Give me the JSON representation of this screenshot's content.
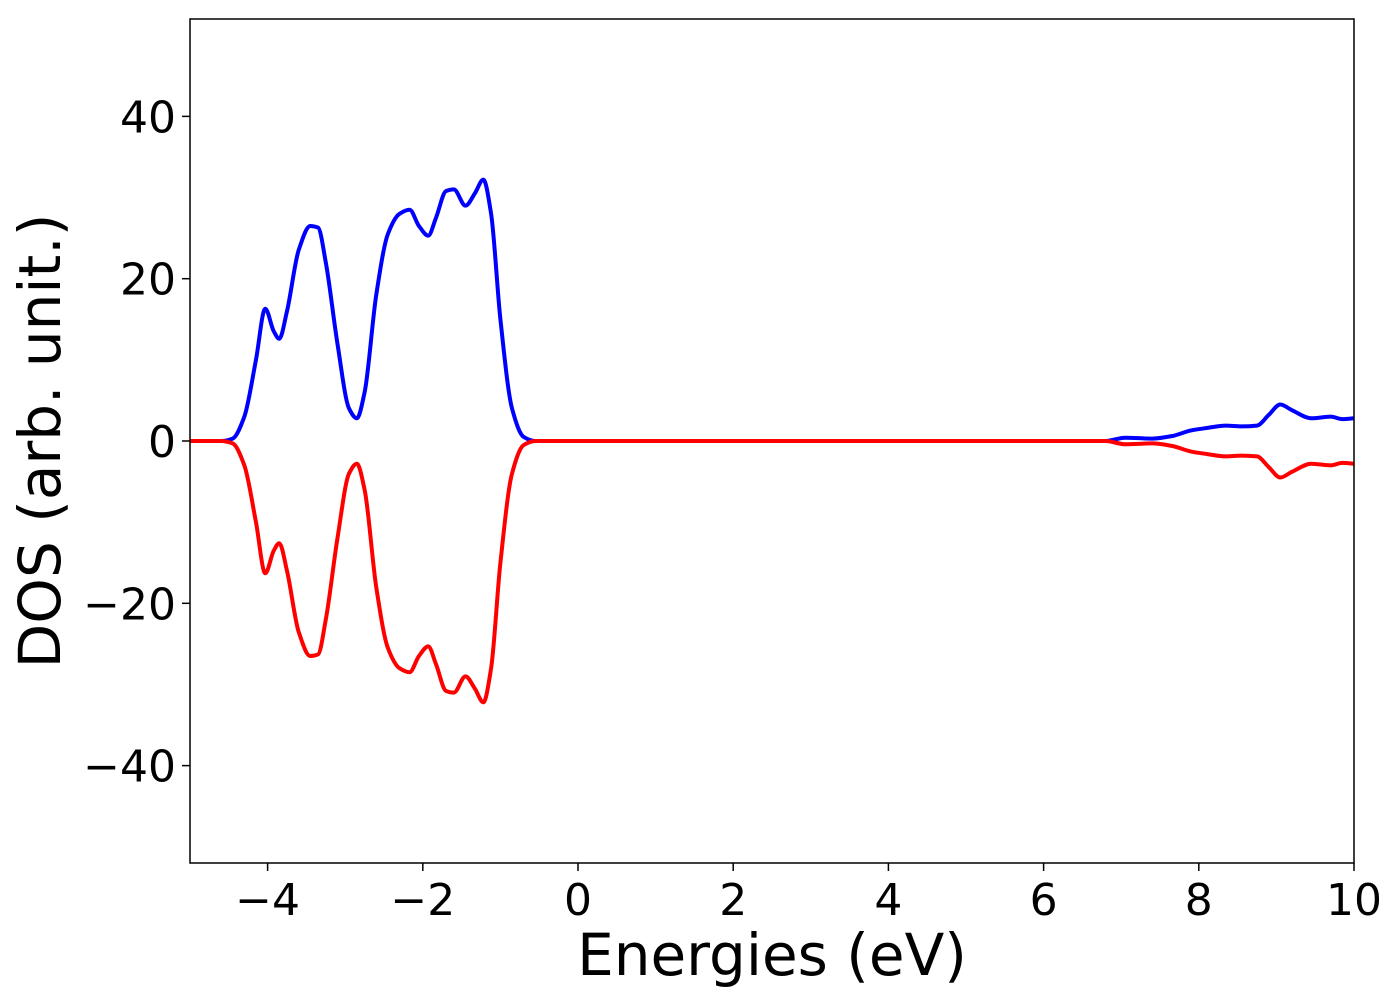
{
  "chart_data": {
    "type": "line",
    "title": "",
    "xlabel": "Energies (eV)",
    "ylabel": "DOS (arb. unit.)",
    "xlim": [
      -5,
      10
    ],
    "ylim": [
      -52,
      52
    ],
    "grid": false,
    "legend": "none",
    "x_ticks": [
      {
        "value": -4,
        "label": "−4"
      },
      {
        "value": -2,
        "label": "−2"
      },
      {
        "value": 0,
        "label": "0"
      },
      {
        "value": 2,
        "label": "2"
      },
      {
        "value": 4,
        "label": "4"
      },
      {
        "value": 6,
        "label": "6"
      },
      {
        "value": 8,
        "label": "8"
      },
      {
        "value": 10,
        "label": "10"
      }
    ],
    "y_ticks": [
      {
        "value": 40,
        "label": "40"
      },
      {
        "value": 20,
        "label": "20"
      },
      {
        "value": 0,
        "label": "0"
      },
      {
        "value": -20,
        "label": "−20"
      },
      {
        "value": -40,
        "label": "−40"
      }
    ],
    "series": [
      {
        "color": "#0000ff",
        "x": [
          -5.0,
          -4.6,
          -4.45,
          -4.3,
          -4.15,
          -4.03,
          -3.92,
          -3.85,
          -3.75,
          -3.6,
          -3.45,
          -3.35,
          -3.25,
          -3.1,
          -2.95,
          -2.85,
          -2.75,
          -2.6,
          -2.45,
          -2.3,
          -2.17,
          -2.05,
          -1.93,
          -1.83,
          -1.7,
          -1.6,
          -1.45,
          -1.33,
          -1.22,
          -1.12,
          -1.0,
          -0.85,
          -0.7,
          -0.55,
          0.0,
          2.0,
          4.0,
          6.0,
          6.8,
          7.05,
          7.4,
          7.65,
          7.9,
          8.1,
          8.35,
          8.55,
          8.75,
          8.9,
          9.05,
          9.2,
          9.45,
          9.7,
          9.85,
          10.0
        ],
        "y": [
          0,
          0,
          0.3,
          3,
          10,
          16.3,
          13.5,
          12.6,
          16,
          23.5,
          26.5,
          26.3,
          22,
          12,
          4,
          2.8,
          6,
          18,
          25.5,
          28,
          28.5,
          26.5,
          25.3,
          27.5,
          30.8,
          31,
          29,
          30.5,
          32.2,
          28,
          15,
          4,
          0.5,
          0,
          0,
          0,
          0,
          0,
          0,
          0.4,
          0.3,
          0.6,
          1.3,
          1.6,
          1.9,
          1.8,
          1.9,
          3.2,
          4.5,
          3.8,
          2.8,
          3.0,
          2.7,
          2.8
        ]
      },
      {
        "color": "#ff0000",
        "x": [
          -5.0,
          -4.6,
          -4.45,
          -4.3,
          -4.15,
          -4.03,
          -3.92,
          -3.85,
          -3.75,
          -3.6,
          -3.45,
          -3.35,
          -3.25,
          -3.1,
          -2.95,
          -2.85,
          -2.75,
          -2.6,
          -2.45,
          -2.3,
          -2.17,
          -2.05,
          -1.93,
          -1.83,
          -1.7,
          -1.6,
          -1.45,
          -1.33,
          -1.22,
          -1.12,
          -1.0,
          -0.85,
          -0.7,
          -0.55,
          0.0,
          2.0,
          4.0,
          6.0,
          6.8,
          7.05,
          7.4,
          7.65,
          7.9,
          8.1,
          8.35,
          8.55,
          8.75,
          8.9,
          9.05,
          9.2,
          9.45,
          9.7,
          9.85,
          10.0
        ],
        "y": [
          0,
          0,
          -0.3,
          -3,
          -10,
          -16.3,
          -13.5,
          -12.6,
          -16,
          -23.5,
          -26.5,
          -26.3,
          -22,
          -12,
          -4,
          -2.8,
          -6,
          -18,
          -25.5,
          -28,
          -28.5,
          -26.5,
          -25.3,
          -27.5,
          -30.8,
          -31,
          -29,
          -30.5,
          -32.2,
          -28,
          -15,
          -4,
          -0.5,
          0,
          0,
          0,
          0,
          0,
          0,
          -0.4,
          -0.3,
          -0.6,
          -1.3,
          -1.6,
          -1.9,
          -1.8,
          -1.9,
          -3.2,
          -4.5,
          -3.8,
          -2.8,
          -3.0,
          -2.7,
          -2.8
        ]
      }
    ]
  }
}
